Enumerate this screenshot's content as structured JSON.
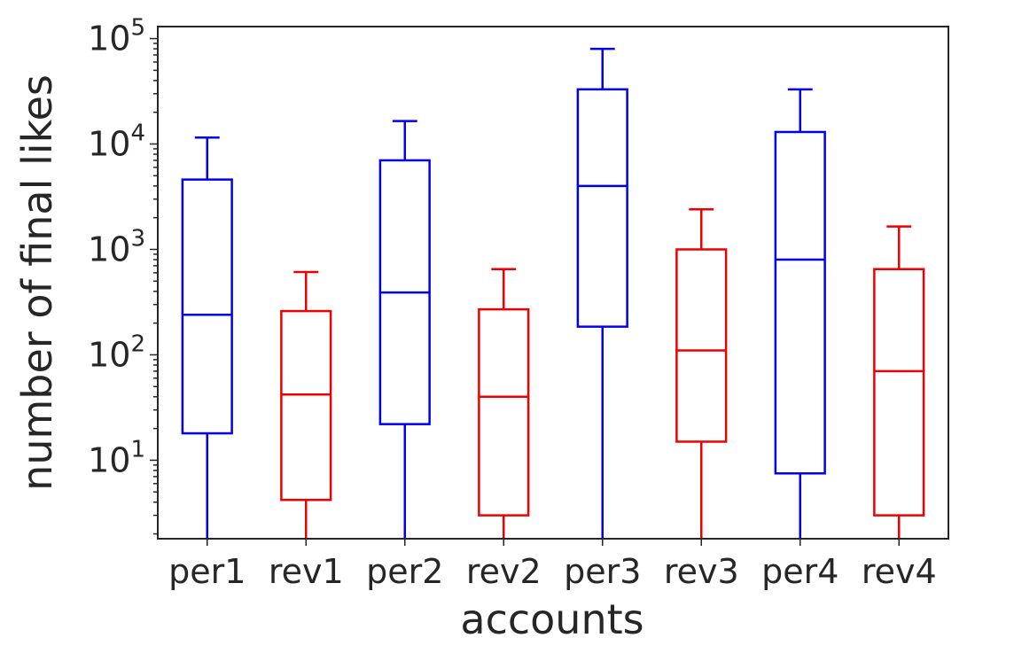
{
  "chart_data": {
    "type": "box",
    "xlabel": "accounts",
    "ylabel": "number of final likes",
    "yscale": "log",
    "ylim": [
      1.8,
      130000
    ],
    "grid": false,
    "categories": [
      "per1",
      "rev1",
      "per2",
      "rev2",
      "per3",
      "rev3",
      "per4",
      "rev4"
    ],
    "yticks": [
      {
        "value": 10,
        "base": "10",
        "exp": "1"
      },
      {
        "value": 100,
        "base": "10",
        "exp": "2"
      },
      {
        "value": 1000,
        "base": "10",
        "exp": "3"
      },
      {
        "value": 10000,
        "base": "10",
        "exp": "4"
      },
      {
        "value": 100000,
        "base": "10",
        "exp": "5"
      }
    ],
    "boxes": [
      {
        "category": "per1",
        "color": "#0000ee",
        "whislo": 1.0,
        "q1": 18,
        "median": 240,
        "q3": 4600,
        "whishi": 11500
      },
      {
        "category": "rev1",
        "color": "#ee0000",
        "whislo": 1.0,
        "q1": 4.2,
        "median": 42,
        "q3": 260,
        "whishi": 610
      },
      {
        "category": "per2",
        "color": "#0000ee",
        "whislo": 1.0,
        "q1": 22,
        "median": 390,
        "q3": 7000,
        "whishi": 16500
      },
      {
        "category": "rev2",
        "color": "#ee0000",
        "whislo": 1.0,
        "q1": 3.0,
        "median": 40,
        "q3": 270,
        "whishi": 650
      },
      {
        "category": "per3",
        "color": "#0000ee",
        "whislo": 1.0,
        "q1": 185,
        "median": 4000,
        "q3": 33000,
        "whishi": 80000
      },
      {
        "category": "rev3",
        "color": "#ee0000",
        "whislo": 1.0,
        "q1": 15,
        "median": 110,
        "q3": 1000,
        "whishi": 2400
      },
      {
        "category": "per4",
        "color": "#0000ee",
        "whislo": 1.0,
        "q1": 7.5,
        "median": 800,
        "q3": 13000,
        "whishi": 33000
      },
      {
        "category": "rev4",
        "color": "#ee0000",
        "whislo": 1.0,
        "q1": 3.0,
        "median": 70,
        "q3": 650,
        "whishi": 1650
      }
    ]
  }
}
